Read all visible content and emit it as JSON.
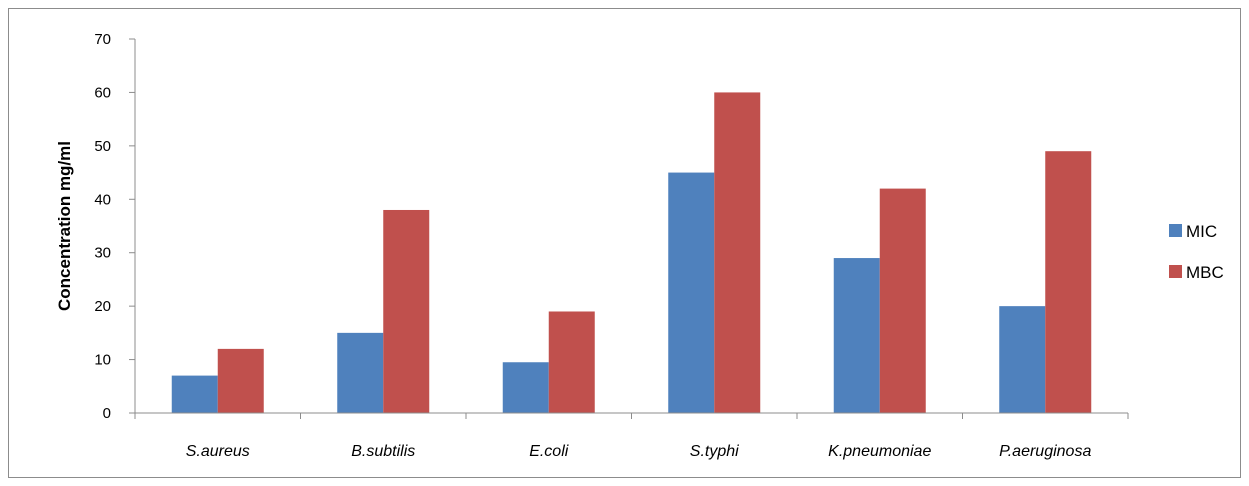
{
  "chart_data": {
    "type": "bar",
    "categories": [
      "S.aureus",
      "B.subtilis",
      "E.coli",
      "S.typhi",
      "K.pneumoniae",
      "P.aeruginosa"
    ],
    "series": [
      {
        "name": "MIC",
        "color": "#4f81bd",
        "values": [
          7,
          15,
          9.5,
          45,
          29,
          20
        ]
      },
      {
        "name": "MBC",
        "color": "#c0504d",
        "values": [
          12,
          38,
          19,
          60,
          42,
          49
        ]
      }
    ],
    "title": "",
    "xlabel": "",
    "ylabel": "Concentration  mg/ml",
    "ylim": [
      0,
      70
    ],
    "yticks": [
      0,
      10,
      20,
      30,
      40,
      50,
      60,
      70
    ],
    "grid": false,
    "legend_position": "right"
  }
}
